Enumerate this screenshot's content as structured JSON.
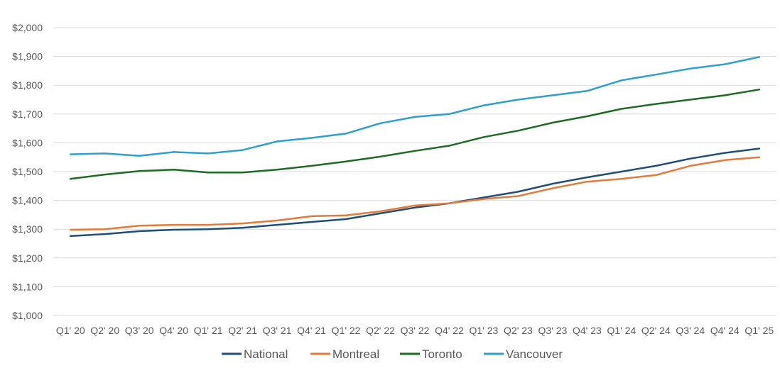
{
  "chart_data": {
    "type": "line",
    "title": "",
    "xlabel": "",
    "ylabel": "",
    "categories": [
      "Q1' 20",
      "Q2' 20",
      "Q3' 20",
      "Q4' 20",
      "Q1' 21",
      "Q2' 21",
      "Q3' 21",
      "Q4' 21",
      "Q1' 22",
      "Q2' 22",
      "Q3' 22",
      "Q4' 22",
      "Q1' 23",
      "Q2' 23",
      "Q3' 23",
      "Q4' 23",
      "Q1' 24",
      "Q2' 24",
      "Q3' 24",
      "Q4' 24",
      "Q1' 25"
    ],
    "ylim": [
      1000,
      2000
    ],
    "yticks": [
      1000,
      1100,
      1200,
      1300,
      1400,
      1500,
      1600,
      1700,
      1800,
      1900,
      2000
    ],
    "ytick_labels": [
      "$1,000",
      "$1,100",
      "$1,200",
      "$1,300",
      "$1,400",
      "$1,500",
      "$1,600",
      "$1,700",
      "$1,800",
      "$1,900",
      "$2,000"
    ],
    "grid": true,
    "legend_position": "bottom",
    "series": [
      {
        "name": "National",
        "color": "#1f4e79",
        "values": [
          1276,
          1283,
          1293,
          1298,
          1300,
          1305,
          1315,
          1325,
          1335,
          1355,
          1375,
          1390,
          1410,
          1430,
          1458,
          1480,
          1500,
          1520,
          1545,
          1565,
          1580
        ]
      },
      {
        "name": "Montreal",
        "color": "#e07b39",
        "values": [
          1298,
          1300,
          1312,
          1315,
          1315,
          1320,
          1330,
          1345,
          1348,
          1362,
          1382,
          1390,
          1405,
          1415,
          1442,
          1465,
          1475,
          1488,
          1520,
          1540,
          1550
        ]
      },
      {
        "name": "Toronto",
        "color": "#1e6b24",
        "values": [
          1475,
          1490,
          1502,
          1507,
          1497,
          1497,
          1507,
          1520,
          1535,
          1552,
          1572,
          1590,
          1620,
          1642,
          1670,
          1692,
          1718,
          1735,
          1750,
          1765,
          1785
        ]
      },
      {
        "name": "Vancouver",
        "color": "#2e9fcf",
        "values": [
          1560,
          1563,
          1555,
          1568,
          1563,
          1575,
          1605,
          1617,
          1632,
          1668,
          1690,
          1700,
          1730,
          1750,
          1765,
          1780,
          1817,
          1837,
          1858,
          1873,
          1898
        ]
      }
    ]
  }
}
